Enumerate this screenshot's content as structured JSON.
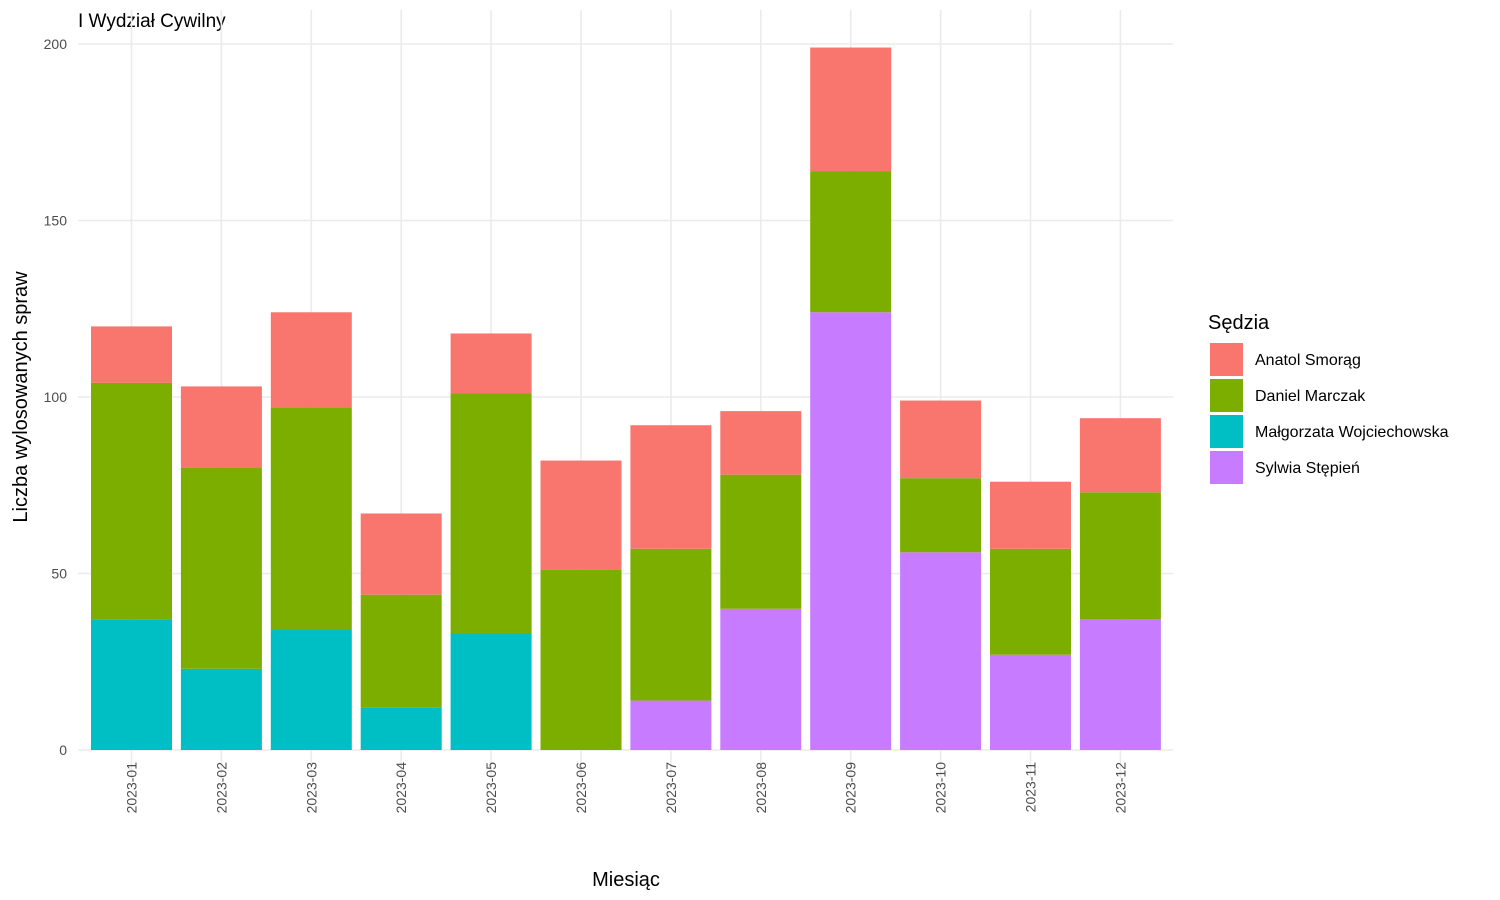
{
  "chart_data": {
    "type": "bar",
    "stacked": true,
    "title": "I Wydział Cywilny",
    "xlabel": "Miesiąc",
    "ylabel": "Liczba wylosowanych spraw",
    "ylim": [
      0,
      200
    ],
    "yticks": [
      0,
      50,
      100,
      150,
      200
    ],
    "grid": true,
    "legend_title": "Sędzia",
    "legend_position": "right",
    "categories": [
      "2023-01",
      "2023-02",
      "2023-03",
      "2023-04",
      "2023-05",
      "2023-06",
      "2023-07",
      "2023-08",
      "2023-09",
      "2023-10",
      "2023-11",
      "2023-12"
    ],
    "series": [
      {
        "name": "Anatol Smorąg",
        "color": "#F8766D",
        "values": [
          16,
          23,
          27,
          23,
          17,
          31,
          35,
          18,
          35,
          22,
          19,
          21
        ]
      },
      {
        "name": "Daniel Marczak",
        "color": "#7CAE00",
        "values": [
          67,
          57,
          63,
          32,
          68,
          51,
          43,
          38,
          40,
          21,
          30,
          36
        ]
      },
      {
        "name": "Małgorzata Wojciechowska",
        "color": "#00BFC4",
        "values": [
          37,
          23,
          34,
          12,
          33,
          0,
          0,
          0,
          0,
          0,
          0,
          0
        ]
      },
      {
        "name": "Sylwia Stępień",
        "color": "#C77CFF",
        "values": [
          0,
          0,
          0,
          0,
          0,
          0,
          14,
          40,
          124,
          56,
          27,
          37
        ]
      }
    ],
    "stack_order_bottom_to_top": [
      "Małgorzata Wojciechowska",
      "Sylwia Stępień",
      "Daniel Marczak",
      "Anatol Smorąg"
    ]
  }
}
